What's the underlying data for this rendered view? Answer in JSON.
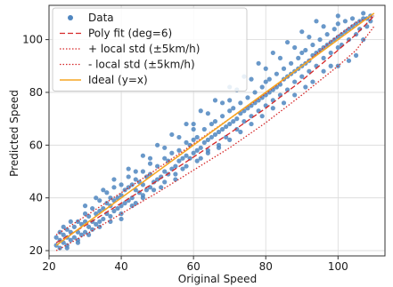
{
  "chart_data": {
    "type": "scatter",
    "xlabel": "Original Speed",
    "ylabel": "Predicted Speed",
    "xlim": [
      20,
      113
    ],
    "ylim": [
      18,
      113
    ],
    "xticks": [
      20,
      40,
      60,
      80,
      100
    ],
    "yticks": [
      20,
      40,
      60,
      80,
      100
    ],
    "grid": true,
    "legend_position": "top-left",
    "legend": [
      {
        "label": "Data",
        "kind": "point",
        "color": "#4f86c0"
      },
      {
        "label": "Poly fit (deg=6)",
        "kind": "dashed",
        "color": "#d62728"
      },
      {
        "label": "+ local std (±5km/h)",
        "kind": "dotted",
        "color": "#d62728"
      },
      {
        "label": "- local std (±5km/h)",
        "kind": "dotted",
        "color": "#d62728"
      },
      {
        "label": "Ideal (y=x)",
        "kind": "solid",
        "color": "#f5a623"
      }
    ],
    "series": [
      {
        "name": "Data",
        "kind": "scatter",
        "color": "#4f86c0",
        "points": [
          [
            22,
            22
          ],
          [
            22,
            25
          ],
          [
            23,
            21
          ],
          [
            23,
            24
          ],
          [
            23,
            27
          ],
          [
            24,
            23
          ],
          [
            24,
            26
          ],
          [
            25,
            22
          ],
          [
            25,
            25
          ],
          [
            25,
            28
          ],
          [
            26,
            24
          ],
          [
            26,
            27
          ],
          [
            27,
            25
          ],
          [
            27,
            29
          ],
          [
            28,
            24
          ],
          [
            28,
            27
          ],
          [
            28,
            31
          ],
          [
            29,
            26
          ],
          [
            29,
            30
          ],
          [
            30,
            27
          ],
          [
            30,
            31
          ],
          [
            30,
            34
          ],
          [
            31,
            29
          ],
          [
            31,
            33
          ],
          [
            32,
            28
          ],
          [
            32,
            31
          ],
          [
            32,
            36
          ],
          [
            33,
            30
          ],
          [
            33,
            34
          ],
          [
            34,
            31
          ],
          [
            34,
            35
          ],
          [
            34,
            39
          ],
          [
            35,
            32
          ],
          [
            35,
            36
          ],
          [
            36,
            34
          ],
          [
            36,
            38
          ],
          [
            36,
            42
          ],
          [
            37,
            33
          ],
          [
            37,
            37
          ],
          [
            37,
            40
          ],
          [
            38,
            35
          ],
          [
            38,
            39
          ],
          [
            38,
            44
          ],
          [
            39,
            36
          ],
          [
            39,
            40
          ],
          [
            40,
            37
          ],
          [
            40,
            41
          ],
          [
            40,
            45
          ],
          [
            40,
            32
          ],
          [
            41,
            38
          ],
          [
            41,
            43
          ],
          [
            42,
            39
          ],
          [
            42,
            44
          ],
          [
            42,
            48
          ],
          [
            43,
            40
          ],
          [
            43,
            45
          ],
          [
            44,
            38
          ],
          [
            44,
            43
          ],
          [
            44,
            47
          ],
          [
            45,
            42
          ],
          [
            45,
            46
          ],
          [
            46,
            41
          ],
          [
            46,
            45
          ],
          [
            46,
            50
          ],
          [
            47,
            43
          ],
          [
            47,
            48
          ],
          [
            48,
            44
          ],
          [
            48,
            49
          ],
          [
            48,
            53
          ],
          [
            49,
            46
          ],
          [
            50,
            47
          ],
          [
            50,
            52
          ],
          [
            51,
            48
          ],
          [
            51,
            44
          ],
          [
            52,
            50
          ],
          [
            52,
            55
          ],
          [
            53,
            49
          ],
          [
            53,
            54
          ],
          [
            54,
            51
          ],
          [
            54,
            57
          ],
          [
            55,
            52
          ],
          [
            55,
            47
          ],
          [
            56,
            54
          ],
          [
            56,
            58
          ],
          [
            57,
            55
          ],
          [
            57,
            51
          ],
          [
            58,
            56
          ],
          [
            58,
            61
          ],
          [
            59,
            55
          ],
          [
            59,
            60
          ],
          [
            60,
            57
          ],
          [
            60,
            62
          ],
          [
            60,
            66
          ],
          [
            61,
            58
          ],
          [
            61,
            63
          ],
          [
            62,
            59
          ],
          [
            62,
            55
          ],
          [
            63,
            61
          ],
          [
            63,
            66
          ],
          [
            64,
            62
          ],
          [
            64,
            58
          ],
          [
            65,
            63
          ],
          [
            65,
            68
          ],
          [
            66,
            64
          ],
          [
            66,
            69
          ],
          [
            67,
            65
          ],
          [
            67,
            60
          ],
          [
            68,
            66
          ],
          [
            68,
            71
          ],
          [
            69,
            67
          ],
          [
            69,
            63
          ],
          [
            70,
            68
          ],
          [
            70,
            73
          ],
          [
            70,
            77
          ],
          [
            71,
            69
          ],
          [
            71,
            74
          ],
          [
            72,
            70
          ],
          [
            72,
            66
          ],
          [
            73,
            72
          ],
          [
            73,
            76
          ],
          [
            74,
            73
          ],
          [
            74,
            69
          ],
          [
            75,
            74
          ],
          [
            75,
            78
          ],
          [
            76,
            75
          ],
          [
            76,
            71
          ],
          [
            77,
            76
          ],
          [
            77,
            80
          ],
          [
            78,
            77
          ],
          [
            78,
            73
          ],
          [
            79,
            78
          ],
          [
            79,
            82
          ],
          [
            80,
            79
          ],
          [
            80,
            75
          ],
          [
            80,
            84
          ],
          [
            81,
            80
          ],
          [
            81,
            85
          ],
          [
            82,
            81
          ],
          [
            82,
            77
          ],
          [
            83,
            82
          ],
          [
            83,
            87
          ],
          [
            84,
            83
          ],
          [
            84,
            79
          ],
          [
            85,
            85
          ],
          [
            85,
            89
          ],
          [
            86,
            86
          ],
          [
            86,
            81
          ],
          [
            87,
            87
          ],
          [
            87,
            91
          ],
          [
            88,
            88
          ],
          [
            88,
            84
          ],
          [
            89,
            89
          ],
          [
            89,
            93
          ],
          [
            90,
            90
          ],
          [
            90,
            86
          ],
          [
            90,
            95
          ],
          [
            91,
            91
          ],
          [
            91,
            96
          ],
          [
            92,
            92
          ],
          [
            92,
            88
          ],
          [
            93,
            94
          ],
          [
            93,
            98
          ],
          [
            94,
            95
          ],
          [
            94,
            90
          ],
          [
            95,
            96
          ],
          [
            95,
            100
          ],
          [
            96,
            97
          ],
          [
            96,
            93
          ],
          [
            97,
            98
          ],
          [
            97,
            102
          ],
          [
            98,
            99
          ],
          [
            98,
            95
          ],
          [
            99,
            100
          ],
          [
            99,
            104
          ],
          [
            100,
            101
          ],
          [
            100,
            97
          ],
          [
            100,
            106
          ],
          [
            101,
            102
          ],
          [
            101,
            98
          ],
          [
            102,
            103
          ],
          [
            102,
            107
          ],
          [
            103,
            104
          ],
          [
            103,
            100
          ],
          [
            104,
            105
          ],
          [
            104,
            108
          ],
          [
            105,
            106
          ],
          [
            105,
            102
          ],
          [
            106,
            107
          ],
          [
            106,
            104
          ],
          [
            107,
            108
          ],
          [
            107,
            110
          ],
          [
            108,
            108
          ],
          [
            108,
            105
          ],
          [
            109,
            109
          ],
          [
            109,
            107
          ],
          [
            105,
            94
          ],
          [
            103,
            92
          ],
          [
            100,
            90
          ],
          [
            107,
            100
          ],
          [
            96,
            88
          ],
          [
            98,
            90
          ],
          [
            93,
            84
          ],
          [
            91,
            82
          ],
          [
            88,
            79
          ],
          [
            85,
            76
          ],
          [
            82,
            74
          ],
          [
            79,
            71
          ],
          [
            76,
            68
          ],
          [
            73,
            65
          ],
          [
            70,
            62
          ],
          [
            67,
            59
          ],
          [
            64,
            57
          ],
          [
            61,
            54
          ],
          [
            58,
            52
          ],
          [
            55,
            49
          ],
          [
            52,
            46
          ],
          [
            49,
            43
          ],
          [
            46,
            40
          ],
          [
            43,
            37
          ],
          [
            40,
            34
          ],
          [
            37,
            31
          ],
          [
            34,
            29
          ],
          [
            31,
            26
          ],
          [
            28,
            23
          ],
          [
            25,
            21
          ],
          [
            44,
            50
          ],
          [
            48,
            55
          ],
          [
            52,
            59
          ],
          [
            56,
            63
          ],
          [
            60,
            68
          ],
          [
            64,
            72
          ],
          [
            68,
            76
          ],
          [
            72,
            81
          ],
          [
            76,
            85
          ],
          [
            80,
            89
          ],
          [
            84,
            93
          ],
          [
            88,
            97
          ],
          [
            92,
            101
          ],
          [
            96,
            105
          ],
          [
            100,
            109
          ],
          [
            38,
            47
          ],
          [
            42,
            51
          ],
          [
            46,
            56
          ],
          [
            50,
            60
          ],
          [
            54,
            64
          ],
          [
            58,
            68
          ],
          [
            62,
            73
          ],
          [
            66,
            77
          ],
          [
            70,
            82
          ],
          [
            74,
            86
          ],
          [
            78,
            91
          ],
          [
            82,
            95
          ],
          [
            86,
            99
          ],
          [
            90,
            103
          ],
          [
            94,
            107
          ],
          [
            30,
            37
          ],
          [
            33,
            40
          ],
          [
            35,
            43
          ],
          [
            26,
            31
          ],
          [
            24,
            29
          ]
        ]
      },
      {
        "name": "Poly fit (deg=6)",
        "kind": "dashed",
        "color": "#d62728",
        "points": [
          [
            22,
            23
          ],
          [
            30,
            29.5
          ],
          [
            40,
            38
          ],
          [
            50,
            46.5
          ],
          [
            60,
            55.5
          ],
          [
            70,
            64.5
          ],
          [
            80,
            74
          ],
          [
            90,
            84.5
          ],
          [
            100,
            96
          ],
          [
            105,
            102
          ],
          [
            110,
            109
          ]
        ]
      },
      {
        "name": "+ local std (±5km/h)",
        "kind": "dotted",
        "color": "#d62728",
        "points": [
          [
            22,
            26
          ],
          [
            30,
            33
          ],
          [
            40,
            42
          ],
          [
            50,
            51
          ],
          [
            60,
            60.5
          ],
          [
            70,
            70
          ],
          [
            80,
            79.5
          ],
          [
            90,
            90
          ],
          [
            100,
            101.5
          ],
          [
            105,
            106.5
          ],
          [
            110,
            109
          ]
        ]
      },
      {
        "name": "- local std (±5km/h)",
        "kind": "dotted",
        "color": "#d62728",
        "points": [
          [
            22,
            20
          ],
          [
            30,
            26
          ],
          [
            40,
            34
          ],
          [
            50,
            42
          ],
          [
            60,
            50.5
          ],
          [
            70,
            59
          ],
          [
            80,
            68.5
          ],
          [
            90,
            79
          ],
          [
            100,
            90
          ],
          [
            105,
            96
          ],
          [
            110,
            105
          ]
        ]
      },
      {
        "name": "Ideal (y=x)",
        "kind": "solid",
        "color": "#f5a623",
        "points": [
          [
            22,
            22
          ],
          [
            110,
            110
          ]
        ]
      }
    ]
  }
}
